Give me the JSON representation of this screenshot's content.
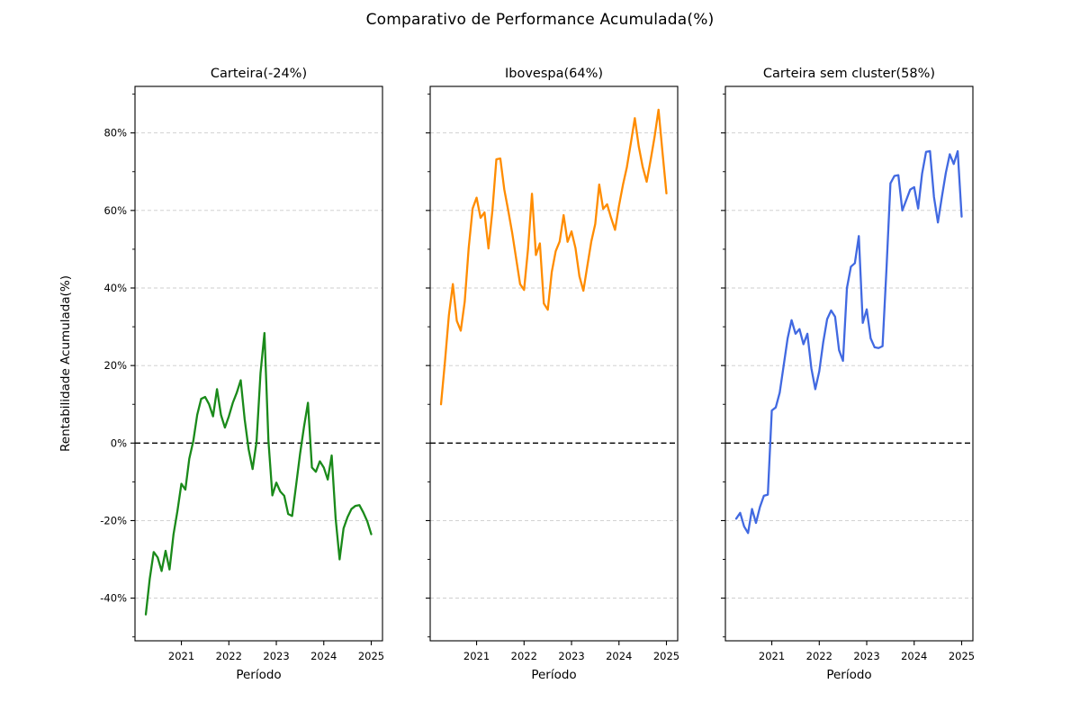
{
  "chart_data": {
    "type": "line",
    "suptitle": "Comparativo de Performance Acumulada(%)",
    "xlabel": "Período",
    "ylabel": "Rentabilidade Acumulada(%)",
    "x_frequency": "monthly",
    "x_start_month": "2020-04",
    "x_end_month": "2025-01",
    "x_tick_labels": [
      "2021",
      "2022",
      "2023",
      "2024",
      "2025"
    ],
    "x_tick_indices": [
      9,
      21,
      33,
      45,
      57
    ],
    "ylim": [
      -51,
      92
    ],
    "ytick_labels": [
      "-40%",
      "-20%",
      "0%",
      "20%",
      "40%",
      "60%",
      "80%"
    ],
    "yticks_pct": [
      -40,
      -20,
      0,
      20,
      40,
      60,
      80
    ],
    "grid": {
      "axis": "y",
      "style": "dashed",
      "color": "#cccccc"
    },
    "zero_line": {
      "value": 0,
      "color": "#000000",
      "style": "dashed"
    },
    "legend": "none",
    "subplots": [
      {
        "title": "Carteira(-24%)",
        "final_value_pct": -24,
        "color": "#1a8a1a",
        "values_pct": [
          -44.2,
          -35,
          -28.1,
          -29.5,
          -33,
          -27.8,
          -32.6,
          -23.6,
          -17.5,
          -10.5,
          -12,
          -4,
          0.5,
          7.3,
          11.4,
          11.9,
          10,
          6.9,
          13.9,
          7.3,
          4,
          6.9,
          10.4,
          13,
          16.2,
          6.1,
          -1.6,
          -6.7,
          0.3,
          18,
          28.4,
          0.7,
          -13.5,
          -10.2,
          -12.5,
          -13.6,
          -18.3,
          -18.8,
          -10.9,
          -2.8,
          4.2,
          10.4,
          -6.3,
          -7.4,
          -4.7,
          -6.3,
          -9.4,
          -3.2,
          -19.5,
          -30,
          -22,
          -19.1,
          -17,
          -16.2,
          -16,
          -17.9,
          -20.2,
          -23.5
        ]
      },
      {
        "title": "Ibovespa(64%)",
        "final_value_pct": 64,
        "color": "#ff8c00",
        "values_pct": [
          10,
          21,
          33,
          41,
          31.5,
          29,
          36.5,
          50.3,
          60.5,
          63.3,
          58.1,
          59.5,
          50.2,
          60,
          73.2,
          73.4,
          65.4,
          60,
          54.2,
          47.6,
          41,
          39.5,
          50,
          64.3,
          48.5,
          51.5,
          36,
          34.4,
          44.1,
          49.5,
          52,
          58.8,
          51.9,
          54.6,
          50.3,
          43,
          39.3,
          45.7,
          52,
          56.5,
          66.7,
          60.4,
          61.6,
          58.1,
          55,
          61.2,
          66.6,
          71.2,
          77.4,
          83.8,
          76.5,
          71.2,
          67.4,
          73,
          79,
          86,
          75,
          64.4
        ]
      },
      {
        "title": "Carteira sem cluster(58%)",
        "final_value_pct": 58,
        "color": "#4169e1",
        "values_pct": [
          -19.5,
          -18,
          -21.5,
          -23.2,
          -17,
          -20.6,
          -16.5,
          -13.6,
          -13.3,
          8.4,
          9.2,
          13,
          20,
          27,
          31.7,
          28.2,
          29.4,
          25.5,
          28.2,
          19.3,
          13.9,
          18.5,
          26,
          32,
          34.2,
          32.6,
          24,
          21.2,
          40,
          45.5,
          46.4,
          53.4,
          31,
          34.5,
          27,
          24.7,
          24.5,
          25,
          45,
          67,
          68.9,
          69.1,
          60,
          62.7,
          65.4,
          66,
          60.5,
          69.5,
          75.1,
          75.3,
          63.5,
          56.9,
          63.5,
          69.7,
          74.5,
          72,
          75.3,
          58.4
        ]
      }
    ]
  }
}
